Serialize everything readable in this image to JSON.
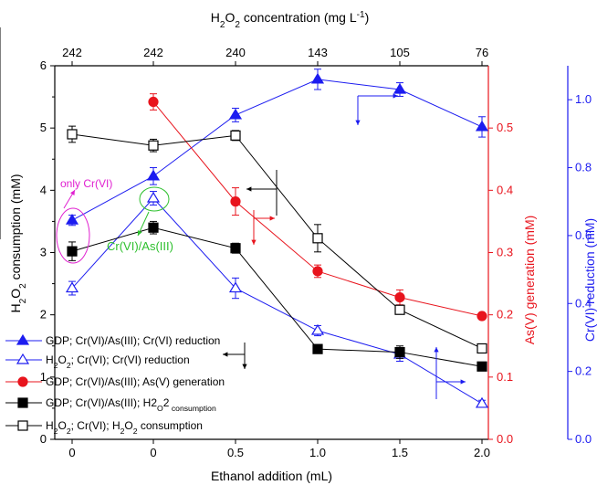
{
  "chart_data": {
    "type": "line",
    "title": "",
    "x_positions": [
      "0",
      "0",
      "0.5",
      "1.0",
      "1.5",
      "2.0"
    ],
    "xlabel": "Ethanol addition (mL)",
    "top_xlabel_parts": [
      "H",
      "2",
      "O",
      "2",
      " concentration (mg L",
      "-1",
      ")"
    ],
    "top_ticks": [
      "242",
      "242",
      "240",
      "143",
      "105",
      "76"
    ],
    "left_axis": {
      "label_parts": [
        "H",
        "2",
        "O",
        "2",
        " consumption  (mM)"
      ],
      "ylim": [
        0,
        6
      ],
      "ticks": [
        "0",
        "1",
        "2",
        "3",
        "4",
        "5",
        "6"
      ],
      "color": "#000000"
    },
    "mid_axis": {
      "label": "As(V) generation (mM)",
      "ylim": [
        0.0,
        0.6
      ],
      "ticks": [
        "0.0",
        "0.1",
        "0.2",
        "0.3",
        "0.4",
        "0.5"
      ],
      "color": "#e8141d"
    },
    "right_axis": {
      "label": "Cr(VI) reduction  (mM)",
      "ylim": [
        0.0,
        1.1
      ],
      "ticks": [
        "0.0",
        "0.2",
        "0.4",
        "0.6",
        "0.8",
        "1.0"
      ],
      "color": "#1c1cf0"
    },
    "series": [
      {
        "name_parts": [
          "GDP; Cr(VI)/As(III); Cr(VI) reduction"
        ],
        "axis": "right",
        "color": "#1c1cf0",
        "marker": "triangle",
        "filled": true,
        "dash": false,
        "points": [
          [
            0,
            0.645
          ],
          [
            1,
            0.775
          ],
          [
            2,
            0.955
          ],
          [
            3,
            1.06
          ],
          [
            4,
            1.03
          ],
          [
            5,
            0.92
          ]
        ],
        "err": [
          0.015,
          0.025,
          0.02,
          0.03,
          0.02,
          0.03
        ]
      },
      {
        "name_parts": [
          "H",
          "2",
          "O",
          "2",
          "; Cr(VI);  Cr(VI) reduction"
        ],
        "axis": "right",
        "color": "#1c1cf0",
        "marker": "triangle",
        "filled": false,
        "dash": false,
        "points": [
          [
            0,
            0.445
          ],
          [
            1,
            0.71
          ],
          [
            2,
            0.445
          ],
          [
            3,
            0.32
          ],
          [
            4,
            0.25
          ],
          [
            5,
            0.105
          ]
        ],
        "err": [
          0.02,
          0.02,
          0.03,
          0.015,
          0.02,
          0.01
        ]
      },
      {
        "name_parts": [
          "GDP;  Cr(VI)/As(III); As(V) generation"
        ],
        "axis": "mid",
        "color": "#e8141d",
        "marker": "circle",
        "filled": true,
        "dash": false,
        "points": [
          [
            1,
            0.542
          ],
          [
            2,
            0.382
          ],
          [
            3,
            0.27
          ],
          [
            4,
            0.228
          ],
          [
            5,
            0.198
          ]
        ],
        "err": [
          0.013,
          0.022,
          0.01,
          0.012,
          0.0
        ]
      },
      {
        "name_parts": [
          "GDP;  Cr(VI)/As(III); H",
          "2",
          "O",
          "2",
          " consumption"
        ],
        "axis": "left",
        "color": "#000000",
        "marker": "square",
        "filled": true,
        "dash": false,
        "points": [
          [
            0,
            3.02
          ],
          [
            1,
            3.4
          ],
          [
            2,
            3.07
          ],
          [
            3,
            1.45
          ],
          [
            4,
            1.4
          ],
          [
            5,
            1.17
          ]
        ],
        "err": [
          0.15,
          0.1,
          0.08,
          0.0,
          0.1,
          0.0
        ]
      },
      {
        "name_parts": [
          "H",
          "2",
          "O",
          "2",
          "; Cr(VI); H",
          "2",
          "O",
          "2",
          " consumption"
        ],
        "axis": "left",
        "color": "#000000",
        "marker": "square",
        "filled": false,
        "dash": false,
        "points": [
          [
            0,
            4.9
          ],
          [
            1,
            4.72
          ],
          [
            2,
            4.88
          ],
          [
            3,
            3.23
          ],
          [
            4,
            2.08
          ],
          [
            5,
            1.46
          ]
        ],
        "err": [
          0.13,
          0.1,
          0.08,
          0.22,
          0.06,
          0.0
        ]
      }
    ],
    "annotations": [
      {
        "text": "only Cr(VI)",
        "color": "#e020d0"
      },
      {
        "text": "Cr(VI)/As(III)",
        "color": "#2ec02e"
      }
    ],
    "legend_position": "bottom-left"
  }
}
